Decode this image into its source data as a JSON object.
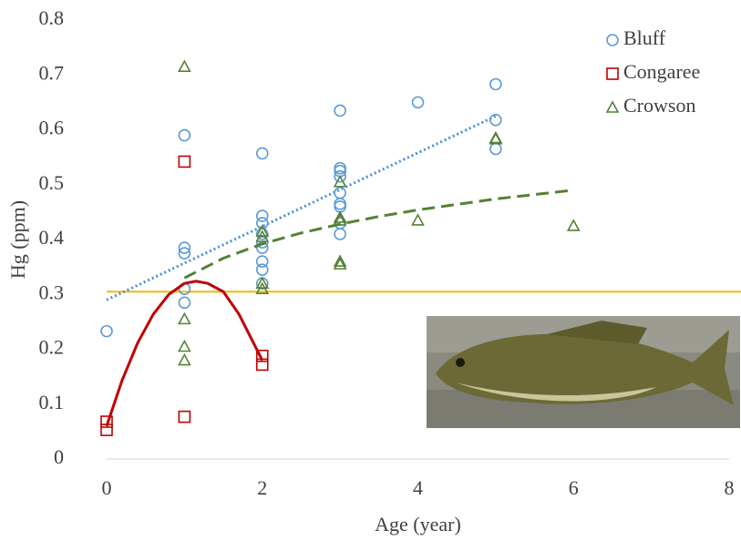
{
  "chart_data": {
    "type": "scatter",
    "x_label": "Age (year)",
    "y_label": "Hg (ppm)",
    "xlim": [
      0,
      8
    ],
    "xticks": [
      0,
      2,
      4,
      6,
      8
    ],
    "ylim": [
      0,
      0.8
    ],
    "yticks": [
      0,
      0.1,
      0.2,
      0.3,
      0.4,
      0.5,
      0.6,
      0.7,
      0.8
    ],
    "grid": false,
    "legend": "top-right",
    "reference_line": {
      "value": 0.305,
      "color": "#f5b700"
    },
    "series": [
      {
        "name": "Bluff",
        "color": "#5b9bd5",
        "marker": "circle",
        "x": [
          0,
          1,
          1,
          1,
          1,
          1,
          2,
          2,
          2,
          2,
          2,
          2,
          2,
          2,
          2,
          3,
          3,
          3,
          3,
          3,
          3,
          3,
          3,
          3,
          4,
          5,
          5,
          5
        ],
        "values": [
          0.233,
          0.59,
          0.385,
          0.375,
          0.31,
          0.285,
          0.557,
          0.443,
          0.43,
          0.41,
          0.395,
          0.385,
          0.36,
          0.345,
          0.32,
          0.635,
          0.53,
          0.525,
          0.515,
          0.485,
          0.465,
          0.46,
          0.43,
          0.41,
          0.65,
          0.683,
          0.618,
          0.565
        ],
        "trend": {
          "style": "dotted",
          "color": "#4a8fd4",
          "x": [
            0,
            5
          ],
          "values": [
            0.29,
            0.625
          ]
        }
      },
      {
        "name": "Congaree",
        "color": "#c00000",
        "marker": "square",
        "x": [
          0,
          0,
          1,
          1,
          2,
          2
        ],
        "values": [
          0.068,
          0.053,
          0.542,
          0.077,
          0.188,
          0.172
        ],
        "trend": {
          "style": "solid",
          "color": "#c00000",
          "x": [
            0,
            0.2,
            0.4,
            0.6,
            0.8,
            1,
            1.15,
            1.3,
            1.5,
            1.7,
            2
          ],
          "values": [
            0.06,
            0.144,
            0.212,
            0.264,
            0.3,
            0.32,
            0.324,
            0.32,
            0.305,
            0.264,
            0.18
          ]
        }
      },
      {
        "name": "Crowson",
        "color": "#548235",
        "marker": "triangle",
        "x": [
          1,
          1,
          1,
          1,
          2,
          2,
          2,
          2,
          3,
          3,
          3,
          3,
          3,
          4,
          5,
          5,
          6
        ],
        "values": [
          0.715,
          0.255,
          0.205,
          0.18,
          0.415,
          0.405,
          0.32,
          0.31,
          0.505,
          0.44,
          0.435,
          0.36,
          0.355,
          0.435,
          0.585,
          0.583,
          0.425
        ],
        "trend": {
          "style": "dashed",
          "color": "#548235",
          "x": [
            1,
            1.5,
            2,
            2.5,
            3,
            3.5,
            4,
            4.5,
            5,
            5.5,
            6
          ],
          "values": [
            0.33,
            0.366,
            0.392,
            0.412,
            0.428,
            0.442,
            0.454,
            0.464,
            0.474,
            0.482,
            0.49
          ]
        }
      }
    ]
  }
}
